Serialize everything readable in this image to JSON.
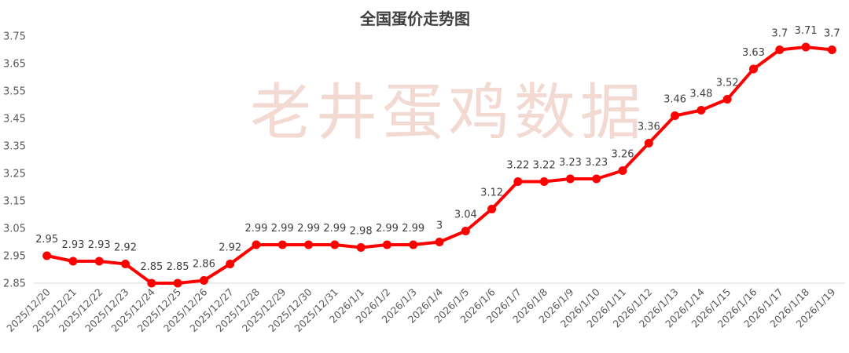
{
  "chart_data": {
    "type": "line",
    "title": "全国蛋价走势图",
    "watermark": "老井蛋鸡数据",
    "xlabel": "",
    "ylabel": "",
    "ylim": [
      2.85,
      3.75
    ],
    "y_ticks": [
      "2.85",
      "2.95",
      "3.05",
      "3.15",
      "3.25",
      "3.35",
      "3.45",
      "3.55",
      "3.65",
      "3.75"
    ],
    "grid": false,
    "legend": "none",
    "colors": {
      "line": "#ff0000",
      "marker": "#ff0000",
      "axis": "#d9d9d9"
    },
    "categories": [
      "2025/12/20",
      "2025/12/21",
      "2025/12/22",
      "2025/12/23",
      "2025/12/24",
      "2025/12/25",
      "2025/12/26",
      "2025/12/27",
      "2025/12/28",
      "2025/12/29",
      "2025/12/30",
      "2025/12/31",
      "2026/1/1",
      "2026/1/2",
      "2026/1/3",
      "2026/1/4",
      "2026/1/5",
      "2026/1/6",
      "2026/1/7",
      "2026/1/8",
      "2026/1/9",
      "2026/1/10",
      "2026/1/11",
      "2026/1/12",
      "2026/1/13",
      "2026/1/14",
      "2026/1/15",
      "2026/1/16",
      "2026/1/17",
      "2026/1/18",
      "2026/1/19"
    ],
    "series": [
      {
        "values": [
          2.95,
          2.93,
          2.93,
          2.92,
          2.85,
          2.85,
          2.86,
          2.92,
          2.99,
          2.99,
          2.99,
          2.99,
          2.98,
          2.99,
          2.99,
          3,
          3.04,
          3.12,
          3.22,
          3.22,
          3.23,
          3.23,
          3.26,
          3.36,
          3.46,
          3.48,
          3.52,
          3.63,
          3.7,
          3.71,
          3.7
        ],
        "labels": [
          "2.95",
          "2.93",
          "2.93",
          "2.92",
          "2.85",
          "2.85",
          "2.86",
          "2.92",
          "2.99",
          "2.99",
          "2.99",
          "2.99",
          "2.98",
          "2.99",
          "2.99",
          "3",
          "3.04",
          "3.12",
          "3.22",
          "3.22",
          "3.23",
          "3.23",
          "3.26",
          "3.36",
          "3.46",
          "3.48",
          "3.52",
          "3.63",
          "3.7",
          "3.71",
          "3.7"
        ]
      }
    ]
  }
}
